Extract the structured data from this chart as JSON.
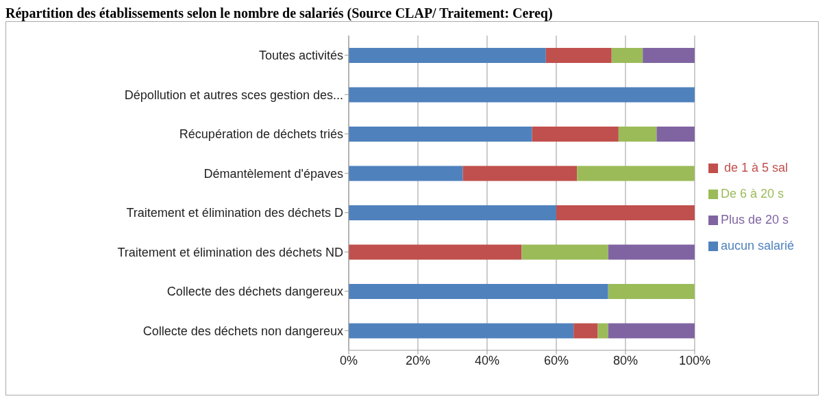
{
  "chart_data": {
    "type": "bar",
    "title": "Répartition des établissements selon le nombre de salariés (Source CLAP/ Traitement: Cereq)",
    "orientation": "horizontal",
    "stacked": true,
    "categories": [
      "Toutes activités",
      "Dépollution et autres sces gestion des...",
      "Récupération de déchets triés",
      "Démantèlement d'épaves",
      "Traitement et élimination des déchets D",
      "Traitement et élimination des déchets ND",
      "Collecte des déchets dangereux",
      "Collecte des déchets non dangereux"
    ],
    "series": [
      {
        "name": "aucun salarié",
        "color": "#4f81bd",
        "values": [
          57,
          100,
          53,
          33,
          60,
          0,
          75,
          65
        ]
      },
      {
        "name": " de 1 à 5 sal",
        "color": "#c0504d",
        "values": [
          19,
          0,
          25,
          33,
          40,
          50,
          0,
          7
        ]
      },
      {
        "name": "De 6 à 20 s",
        "color": "#9bbb59",
        "values": [
          9,
          0,
          11,
          34,
          0,
          25,
          25,
          3
        ]
      },
      {
        "name": "Plus de 20 s",
        "color": "#8064a2",
        "values": [
          15,
          0,
          11,
          0,
          0,
          25,
          0,
          25
        ]
      }
    ],
    "xlim": [
      0,
      100
    ],
    "xticks": [
      {
        "value": 0,
        "label": "0%"
      },
      {
        "value": 20,
        "label": "20%"
      },
      {
        "value": 40,
        "label": "40%"
      },
      {
        "value": 60,
        "label": "60%"
      },
      {
        "value": 80,
        "label": "80%"
      },
      {
        "value": 100,
        "label": "100%"
      }
    ],
    "grid": "x",
    "legend": "right"
  }
}
